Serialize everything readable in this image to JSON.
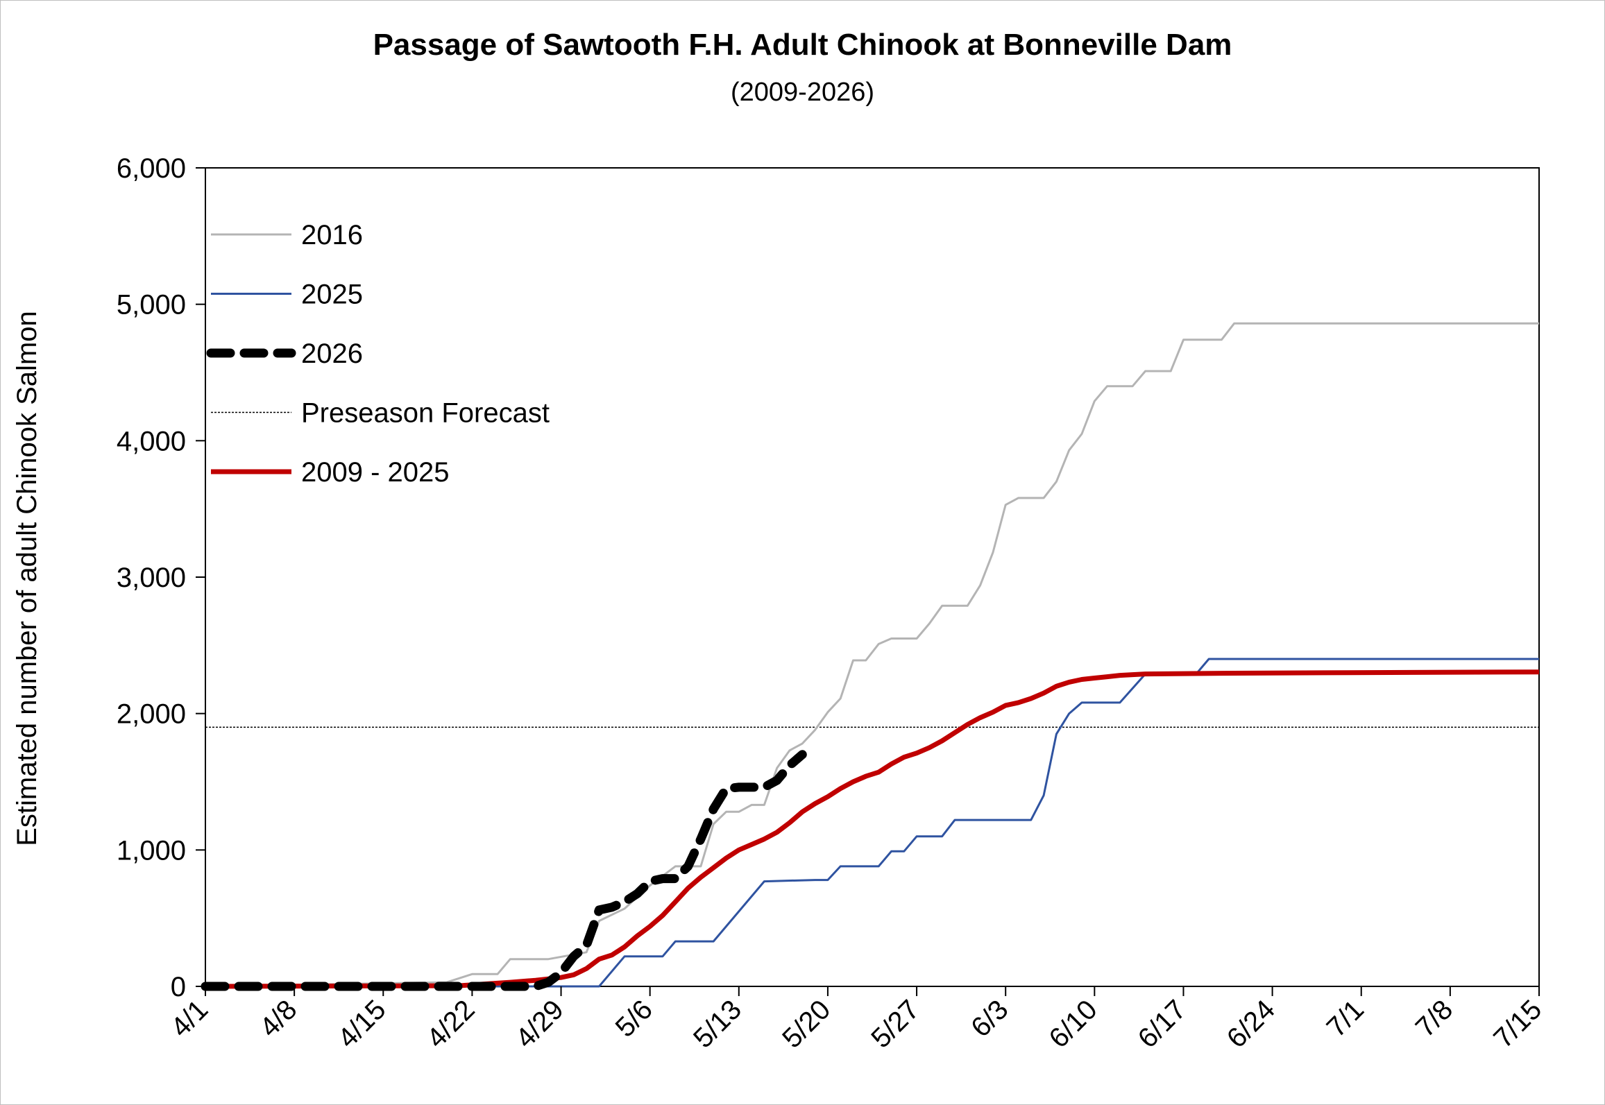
{
  "chart_data": {
    "type": "line",
    "title": "Passage of Sawtooth F.H. Adult Chinook at Bonneville Dam",
    "subtitle": "(2009-2026)",
    "ylabel": "Estimated number of adult Chinook Salmon",
    "xlabel": "",
    "ylim": [
      0,
      6000
    ],
    "yticks": [
      "0",
      "1,000",
      "2,000",
      "3,000",
      "4,000",
      "5,000",
      "6,000"
    ],
    "ytick_values": [
      0,
      1000,
      2000,
      3000,
      4000,
      5000,
      6000
    ],
    "xlim": [
      0,
      105
    ],
    "xticks": [
      "4/1",
      "4/8",
      "4/15",
      "4/22",
      "4/29",
      "5/6",
      "5/13",
      "5/20",
      "5/27",
      "6/3",
      "6/10",
      "6/17",
      "6/24",
      "7/1",
      "7/8",
      "7/15"
    ],
    "xtick_values": [
      0,
      7,
      14,
      21,
      28,
      35,
      42,
      49,
      56,
      63,
      70,
      77,
      84,
      91,
      98,
      105
    ],
    "x_units": "days since 4/1",
    "legend_position": "top-left",
    "grid": false,
    "reference_lines": [
      {
        "name": "Preseason Forecast",
        "value": 1900,
        "color": "#000000",
        "style": "dotted"
      }
    ],
    "series": [
      {
        "name": "2016",
        "color": "#b4b4b4",
        "width": 3,
        "dash": "",
        "points": [
          [
            0,
            0
          ],
          [
            19,
            30
          ],
          [
            21,
            90
          ],
          [
            23,
            90
          ],
          [
            24,
            200
          ],
          [
            27,
            200
          ],
          [
            30,
            250
          ],
          [
            31,
            480
          ],
          [
            33,
            570
          ],
          [
            35,
            740
          ],
          [
            37,
            880
          ],
          [
            39,
            880
          ],
          [
            40,
            1190
          ],
          [
            41,
            1280
          ],
          [
            42,
            1280
          ],
          [
            43,
            1330
          ],
          [
            44,
            1330
          ],
          [
            45,
            1600
          ],
          [
            46,
            1730
          ],
          [
            47,
            1780
          ],
          [
            48,
            1880
          ],
          [
            49,
            2010
          ],
          [
            50,
            2110
          ],
          [
            51,
            2390
          ],
          [
            52,
            2390
          ],
          [
            53,
            2510
          ],
          [
            54,
            2550
          ],
          [
            56,
            2550
          ],
          [
            57,
            2660
          ],
          [
            58,
            2790
          ],
          [
            60,
            2790
          ],
          [
            61,
            2940
          ],
          [
            62,
            3180
          ],
          [
            63,
            3530
          ],
          [
            64,
            3580
          ],
          [
            66,
            3580
          ],
          [
            67,
            3700
          ],
          [
            68,
            3930
          ],
          [
            69,
            4050
          ],
          [
            70,
            4290
          ],
          [
            71,
            4400
          ],
          [
            73,
            4400
          ],
          [
            74,
            4510
          ],
          [
            76,
            4510
          ],
          [
            77,
            4740
          ],
          [
            80,
            4740
          ],
          [
            81,
            4860
          ],
          [
            105,
            4860
          ]
        ]
      },
      {
        "name": "2025",
        "color": "#2f53a0",
        "width": 3,
        "dash": "",
        "points": [
          [
            0,
            0
          ],
          [
            31,
            0
          ],
          [
            33,
            220
          ],
          [
            36,
            220
          ],
          [
            37,
            330
          ],
          [
            40,
            330
          ],
          [
            44,
            770
          ],
          [
            48,
            780
          ],
          [
            49,
            780
          ],
          [
            50,
            880
          ],
          [
            53,
            880
          ],
          [
            54,
            990
          ],
          [
            55,
            990
          ],
          [
            56,
            1100
          ],
          [
            58,
            1100
          ],
          [
            59,
            1220
          ],
          [
            65,
            1220
          ],
          [
            66,
            1400
          ],
          [
            67,
            1850
          ],
          [
            68,
            2000
          ],
          [
            69,
            2080
          ],
          [
            72,
            2080
          ],
          [
            74,
            2290
          ],
          [
            78,
            2290
          ],
          [
            79,
            2400
          ],
          [
            105,
            2400
          ]
        ]
      },
      {
        "name": "2026",
        "color": "#000000",
        "width": 13,
        "dash": "28,20",
        "points": [
          [
            0,
            0
          ],
          [
            26,
            0
          ],
          [
            27,
            30
          ],
          [
            28,
            100
          ],
          [
            29,
            220
          ],
          [
            30,
            300
          ],
          [
            31,
            560
          ],
          [
            32,
            580
          ],
          [
            33,
            620
          ],
          [
            34,
            680
          ],
          [
            35,
            770
          ],
          [
            36,
            790
          ],
          [
            37,
            790
          ],
          [
            38,
            880
          ],
          [
            39,
            1080
          ],
          [
            40,
            1300
          ],
          [
            41,
            1450
          ],
          [
            42,
            1460
          ],
          [
            44,
            1460
          ],
          [
            45,
            1510
          ],
          [
            46,
            1620
          ],
          [
            47,
            1700
          ]
        ]
      },
      {
        "name": "2009 - 2025",
        "color": "#c00000",
        "width": 7,
        "dash": "",
        "points": [
          [
            0,
            0
          ],
          [
            20,
            5
          ],
          [
            24,
            30
          ],
          [
            26,
            45
          ],
          [
            28,
            65
          ],
          [
            29,
            85
          ],
          [
            30,
            130
          ],
          [
            31,
            200
          ],
          [
            32,
            230
          ],
          [
            33,
            290
          ],
          [
            34,
            370
          ],
          [
            35,
            440
          ],
          [
            36,
            520
          ],
          [
            37,
            620
          ],
          [
            38,
            720
          ],
          [
            39,
            800
          ],
          [
            40,
            870
          ],
          [
            41,
            940
          ],
          [
            42,
            1000
          ],
          [
            43,
            1040
          ],
          [
            44,
            1080
          ],
          [
            45,
            1130
          ],
          [
            46,
            1200
          ],
          [
            47,
            1280
          ],
          [
            48,
            1340
          ],
          [
            49,
            1390
          ],
          [
            50,
            1450
          ],
          [
            51,
            1500
          ],
          [
            52,
            1540
          ],
          [
            53,
            1570
          ],
          [
            54,
            1630
          ],
          [
            55,
            1680
          ],
          [
            56,
            1710
          ],
          [
            57,
            1750
          ],
          [
            58,
            1800
          ],
          [
            59,
            1860
          ],
          [
            60,
            1920
          ],
          [
            61,
            1970
          ],
          [
            62,
            2010
          ],
          [
            63,
            2060
          ],
          [
            64,
            2080
          ],
          [
            65,
            2110
          ],
          [
            66,
            2150
          ],
          [
            67,
            2200
          ],
          [
            68,
            2230
          ],
          [
            69,
            2250
          ],
          [
            70,
            2260
          ],
          [
            71,
            2270
          ],
          [
            72,
            2280
          ],
          [
            73,
            2285
          ],
          [
            74,
            2290
          ],
          [
            80,
            2295
          ],
          [
            90,
            2300
          ],
          [
            105,
            2305
          ]
        ]
      }
    ]
  }
}
